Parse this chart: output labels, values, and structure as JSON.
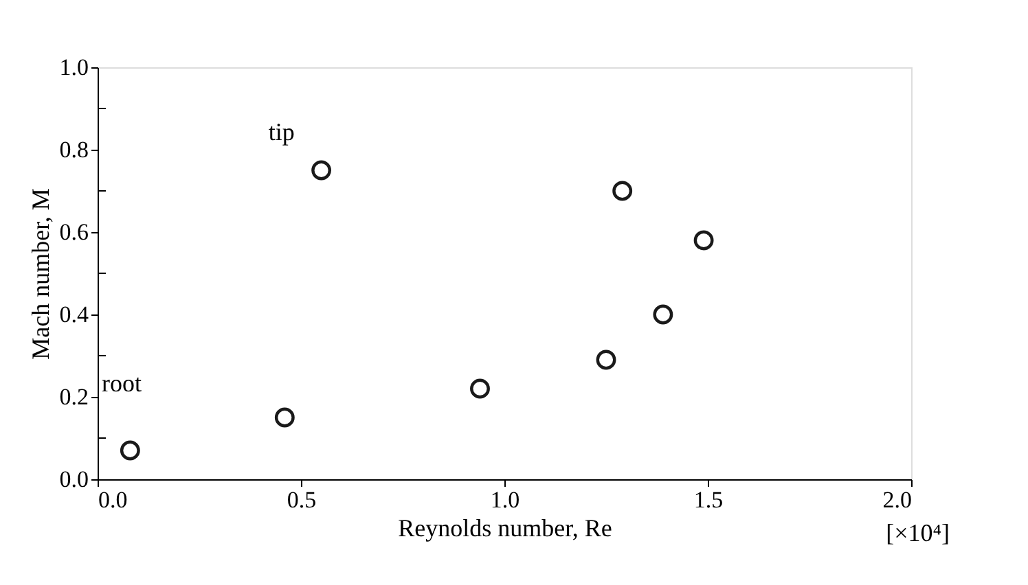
{
  "chart_data": {
    "type": "scatter",
    "xlabel": "Reynolds number, Re",
    "ylabel": "Mach number, M",
    "x": [
      0.08,
      0.46,
      0.55,
      0.94,
      1.25,
      1.29,
      1.39,
      1.49
    ],
    "series": [
      {
        "color": "#1a1a1a",
        "values": [
          0.07,
          0.15,
          0.75,
          0.22,
          0.29,
          0.7,
          0.4,
          0.58
        ]
      }
    ],
    "marker": "circle",
    "grid": false,
    "legend": false,
    "xlim": [
      0,
      2
    ],
    "ylim": [
      0,
      1
    ],
    "xticks": [
      {
        "value": 0,
        "label": "0.0"
      },
      {
        "value": 0.5,
        "label": "0.5"
      },
      {
        "value": 1,
        "label": "1.0"
      },
      {
        "value": 1.5,
        "label": "1.5"
      },
      {
        "value": 2,
        "label": "2.0"
      }
    ],
    "yticks": [
      {
        "value": 0,
        "label": "0.0"
      },
      {
        "value": 0.1,
        "label": null
      },
      {
        "value": 0.2,
        "label": "0.2"
      },
      {
        "value": 0.3,
        "label": null
      },
      {
        "value": 0.4,
        "label": "0.4"
      },
      {
        "value": 0.5,
        "label": null
      },
      {
        "value": 0.6,
        "label": "0.6"
      },
      {
        "value": 0.7,
        "label": null
      },
      {
        "value": 0.8,
        "label": "0.8"
      },
      {
        "value": 0.9,
        "label": null
      },
      {
        "value": 1,
        "label": "1.0"
      }
    ],
    "annotations": [
      "tip",
      "root",
      "[×10⁴]"
    ]
  }
}
